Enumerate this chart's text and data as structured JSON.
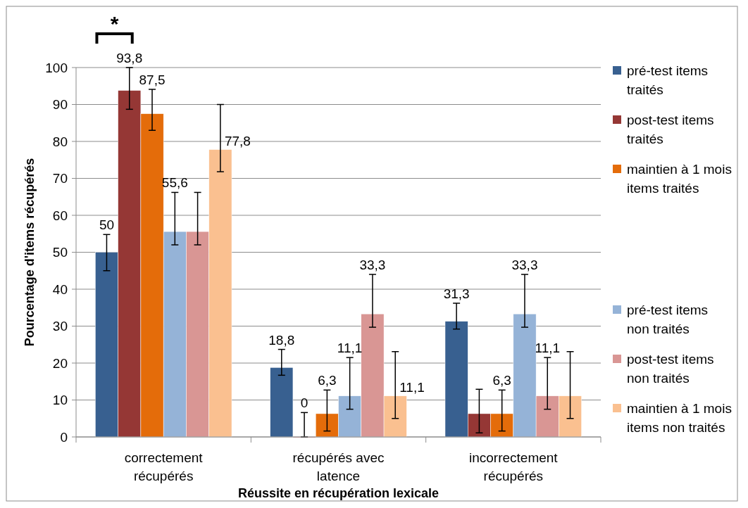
{
  "chart_data": {
    "type": "bar",
    "xlabel": "Réussite en récupération lexicale",
    "ylabel": "Pourcentage d'items récupérés",
    "categories": [
      "correctement récupérés",
      "récupérés avec latence",
      "incorrectement récupérés"
    ],
    "series": [
      {
        "name": "pré-test items traités",
        "color": "#386090",
        "values": [
          50,
          18.8,
          31.3
        ],
        "errors": [
          [
            45,
            54.8
          ],
          [
            16.7,
            23.7
          ],
          [
            29.2,
            36.2
          ]
        ],
        "value_labels": [
          "50",
          "18,8",
          "31,3"
        ]
      },
      {
        "name": "post-test items traités",
        "color": "#953735",
        "values": [
          93.8,
          0,
          6.3
        ],
        "errors": [
          [
            88.7,
            100
          ],
          [
            0,
            6.6
          ],
          [
            1.1,
            12.9
          ]
        ],
        "value_labels": [
          "93,8",
          "0",
          null
        ]
      },
      {
        "name": "maintien à 1 mois items traités",
        "color": "#e46c0a",
        "values": [
          87.5,
          6.3,
          6.3
        ],
        "errors": [
          [
            83,
            94.1
          ],
          [
            1.6,
            12.7
          ],
          [
            1.6,
            12.7
          ]
        ],
        "value_labels": [
          "87,5",
          "6,3",
          "6,3"
        ]
      },
      {
        "name": "pré-test items non traités",
        "color": "#95b3d7",
        "values": [
          55.6,
          11.1,
          33.3
        ],
        "errors": [
          [
            52,
            66.2
          ],
          [
            7.5,
            21.5
          ],
          [
            29.7,
            44
          ]
        ],
        "value_labels": [
          "55,6",
          "11,1",
          "33,3"
        ]
      },
      {
        "name": "post-test items non traités",
        "color": "#d99694",
        "values": [
          55.6,
          33.3,
          11.1
        ],
        "errors": [
          [
            52,
            66.2
          ],
          [
            29.7,
            44
          ],
          [
            7.5,
            21.5
          ]
        ],
        "value_labels": [
          null,
          "33,3",
          "11,1"
        ]
      },
      {
        "name": "maintien à 1 mois items non traités",
        "color": "#fac090",
        "values": [
          77.8,
          11.1,
          11.1
        ],
        "errors": [
          [
            71.8,
            90
          ],
          [
            5,
            23.1
          ],
          [
            5,
            23.1
          ]
        ],
        "value_labels": [
          "77,8",
          "11,1",
          null
        ]
      }
    ],
    "ylim": [
      0,
      100
    ],
    "yticks": [
      0,
      10,
      20,
      30,
      40,
      50,
      60,
      70,
      80,
      90,
      100
    ],
    "grid": "y",
    "legend": "right",
    "annotations": [
      "*"
    ]
  }
}
